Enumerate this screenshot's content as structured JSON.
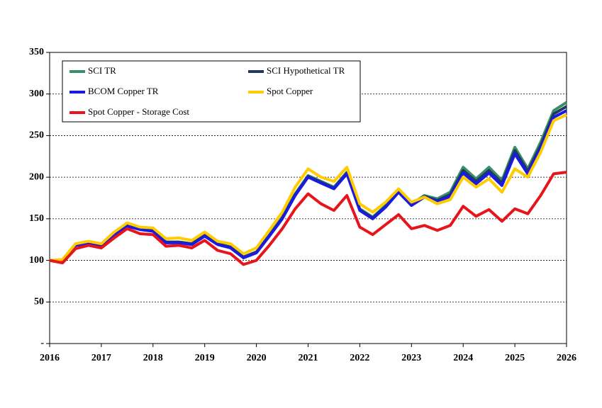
{
  "chart_data": {
    "type": "line",
    "x": [
      2016,
      2016.25,
      2016.5,
      2016.75,
      2017,
      2017.25,
      2017.5,
      2017.75,
      2018,
      2018.25,
      2018.5,
      2018.75,
      2019,
      2019.25,
      2019.5,
      2019.75,
      2020,
      2020.25,
      2020.5,
      2020.75,
      2021,
      2021.25,
      2021.5,
      2021.75,
      2022,
      2022.25,
      2022.5,
      2022.75,
      2023,
      2023.25,
      2023.5,
      2023.75,
      2024,
      2024.25,
      2024.5,
      2024.75,
      2025,
      2025.25,
      2025.5,
      2025.75,
      2026
    ],
    "series": [
      {
        "name": "SCI TR",
        "color": "#3a8f6a",
        "values": [
          100,
          100,
          118,
          120,
          118,
          130,
          142,
          138,
          136,
          122,
          122,
          120,
          130,
          120,
          116,
          104,
          110,
          130,
          152,
          180,
          202,
          195,
          188,
          206,
          162,
          152,
          166,
          184,
          168,
          178,
          174,
          182,
          212,
          198,
          212,
          196,
          236,
          210,
          242,
          280,
          290
        ]
      },
      {
        "name": "SCI Hypothetical TR",
        "color": "#1f3864",
        "values": [
          100,
          100,
          118,
          120,
          118,
          130,
          142,
          138,
          136,
          122,
          122,
          120,
          130,
          120,
          116,
          104,
          110,
          130,
          151,
          179,
          201,
          194,
          187,
          205,
          161,
          151,
          165,
          183,
          167,
          177,
          172,
          179,
          208,
          195,
          208,
          193,
          232,
          207,
          238,
          276,
          285
        ]
      },
      {
        "name": "BCOM Copper TR",
        "color": "#1a1ae0",
        "values": [
          100,
          100,
          118,
          120,
          118,
          130,
          141,
          137,
          135,
          121,
          121,
          119,
          129,
          119,
          115,
          103,
          109,
          129,
          150,
          178,
          200,
          193,
          186,
          204,
          160,
          150,
          164,
          182,
          166,
          176,
          171,
          177,
          205,
          192,
          205,
          190,
          228,
          204,
          235,
          272,
          280
        ]
      },
      {
        "name": "Spot Copper",
        "color": "#ffcc00",
        "values": [
          100,
          101,
          120,
          123,
          120,
          134,
          145,
          140,
          139,
          126,
          127,
          124,
          134,
          123,
          120,
          108,
          115,
          136,
          158,
          188,
          210,
          200,
          195,
          212,
          168,
          158,
          170,
          186,
          170,
          176,
          168,
          173,
          200,
          188,
          198,
          182,
          210,
          200,
          230,
          268,
          275
        ]
      },
      {
        "name": "Spot Copper - Storage Cost",
        "color": "#e8141b",
        "values": [
          100,
          97,
          114,
          118,
          115,
          127,
          138,
          132,
          131,
          117,
          118,
          115,
          124,
          112,
          108,
          95,
          100,
          118,
          138,
          162,
          180,
          168,
          160,
          178,
          140,
          131,
          143,
          155,
          138,
          142,
          136,
          142,
          165,
          153,
          161,
          147,
          162,
          156,
          178,
          204,
          206
        ]
      }
    ],
    "xlim": [
      2016,
      2026
    ],
    "xticks": [
      2016,
      2017,
      2018,
      2019,
      2020,
      2021,
      2022,
      2023,
      2024,
      2025,
      2026
    ],
    "ylim": [
      0,
      350
    ],
    "yticks": [
      {
        "value": 0,
        "label": "-"
      },
      50,
      100,
      150,
      200,
      250,
      300,
      350
    ],
    "grid": true,
    "legend": "top-left"
  }
}
